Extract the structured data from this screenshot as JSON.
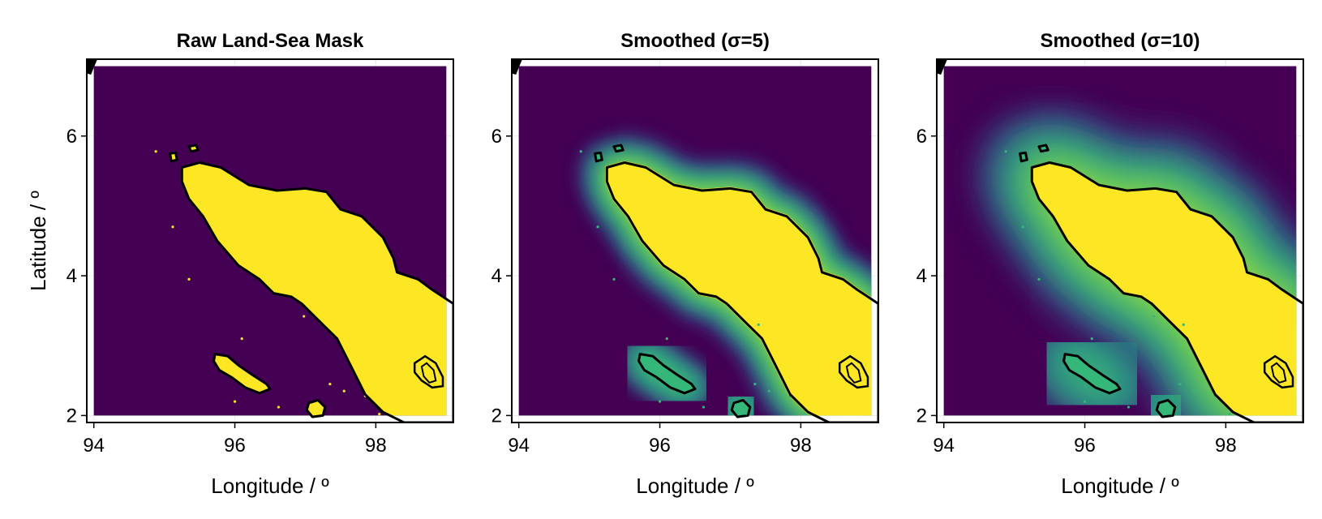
{
  "colors": {
    "sea": "#440154",
    "land": "#fde725",
    "coast": "#000000",
    "levels": [
      "#46337e",
      "#365c8d",
      "#277f8e",
      "#1fa187",
      "#4ac16d",
      "#a0da39",
      "#fde725"
    ],
    "isle_mid": "#35b779",
    "frame": "#000000",
    "grid": "#ebebeb"
  },
  "chart_data": [
    {
      "type": "heatmap",
      "title": "Raw Land-Sea Mask",
      "xlabel": "Longitude / º",
      "ylabel": "Latitude / º",
      "xlim": [
        93.9,
        99.1
      ],
      "ylim": [
        1.9,
        7.1
      ],
      "xticks": [
        94,
        96,
        98
      ],
      "yticks": [
        2,
        4,
        6
      ],
      "field": "binary land-sea mask (0 = sea, 1 = land)",
      "smoothing_sigma": 0
    },
    {
      "type": "heatmap",
      "title": "Smoothed (σ=5)",
      "xlabel": "Longitude / º",
      "ylabel": "",
      "xlim": [
        93.9,
        99.1
      ],
      "ylim": [
        1.9,
        7.1
      ],
      "xticks": [
        94,
        96,
        98
      ],
      "yticks": [
        2,
        4,
        6
      ],
      "field": "gaussian-smoothed land-sea mask",
      "smoothing_sigma": 5
    },
    {
      "type": "heatmap",
      "title": "Smoothed (σ=10)",
      "xlabel": "Longitude / º",
      "ylabel": "",
      "xlim": [
        93.9,
        99.1
      ],
      "ylim": [
        1.9,
        7.1
      ],
      "xticks": [
        94,
        96,
        98
      ],
      "yticks": [
        2,
        4,
        6
      ],
      "field": "gaussian-smoothed land-sea mask",
      "smoothing_sigma": 10
    }
  ],
  "features": {
    "mainland": [
      [
        95.25,
        5.55
      ],
      [
        95.5,
        5.62
      ],
      [
        95.8,
        5.55
      ],
      [
        96.2,
        5.3
      ],
      [
        96.6,
        5.22
      ],
      [
        97.0,
        5.25
      ],
      [
        97.3,
        5.2
      ],
      [
        97.5,
        4.95
      ],
      [
        97.8,
        4.85
      ],
      [
        98.1,
        4.55
      ],
      [
        98.25,
        4.25
      ],
      [
        98.3,
        4.05
      ],
      [
        98.6,
        3.95
      ],
      [
        98.8,
        3.8
      ],
      [
        99.1,
        3.6
      ],
      [
        99.1,
        1.9
      ],
      [
        98.4,
        1.9
      ],
      [
        98.1,
        2.05
      ],
      [
        97.85,
        2.3
      ],
      [
        97.65,
        2.7
      ],
      [
        97.45,
        3.1
      ],
      [
        97.2,
        3.35
      ],
      [
        96.95,
        3.6
      ],
      [
        96.8,
        3.7
      ],
      [
        96.55,
        3.75
      ],
      [
        96.35,
        3.95
      ],
      [
        96.05,
        4.15
      ],
      [
        95.75,
        4.5
      ],
      [
        95.55,
        4.85
      ],
      [
        95.35,
        5.1
      ],
      [
        95.25,
        5.35
      ]
    ],
    "islands": [
      [
        [
          95.72,
          2.88
        ],
        [
          95.9,
          2.85
        ],
        [
          96.05,
          2.72
        ],
        [
          96.25,
          2.58
        ],
        [
          96.45,
          2.45
        ],
        [
          96.5,
          2.38
        ],
        [
          96.35,
          2.32
        ],
        [
          96.15,
          2.4
        ],
        [
          95.95,
          2.55
        ],
        [
          95.78,
          2.65
        ],
        [
          95.7,
          2.78
        ]
      ],
      [
        [
          97.05,
          2.18
        ],
        [
          97.18,
          2.22
        ],
        [
          97.28,
          2.12
        ],
        [
          97.25,
          2.0
        ],
        [
          97.1,
          1.98
        ],
        [
          97.02,
          2.08
        ]
      ],
      [
        [
          95.35,
          5.85
        ],
        [
          95.45,
          5.87
        ],
        [
          95.48,
          5.8
        ],
        [
          95.38,
          5.78
        ]
      ],
      [
        [
          95.08,
          5.75
        ],
        [
          95.16,
          5.76
        ],
        [
          95.18,
          5.66
        ],
        [
          95.1,
          5.64
        ]
      ]
    ],
    "lake": [
      [
        98.55,
        2.75
      ],
      [
        98.7,
        2.85
      ],
      [
        98.85,
        2.75
      ],
      [
        98.95,
        2.55
      ],
      [
        98.95,
        2.42
      ],
      [
        98.8,
        2.4
      ],
      [
        98.65,
        2.5
      ],
      [
        98.55,
        2.62
      ]
    ],
    "lake_inner": [
      [
        98.65,
        2.7
      ],
      [
        98.72,
        2.75
      ],
      [
        98.82,
        2.65
      ],
      [
        98.85,
        2.5
      ],
      [
        98.76,
        2.47
      ],
      [
        98.68,
        2.56
      ]
    ],
    "islets": [
      [
        94.88,
        5.78
      ],
      [
        95.12,
        4.7
      ],
      [
        95.35,
        3.95
      ],
      [
        96.1,
        3.1
      ],
      [
        96.62,
        2.12
      ],
      [
        96.98,
        3.42
      ],
      [
        97.4,
        3.3
      ],
      [
        97.55,
        2.35
      ],
      [
        98.05,
        2.02
      ],
      [
        97.85,
        2.28
      ],
      [
        96.0,
        2.2
      ],
      [
        97.35,
        2.45
      ]
    ],
    "corner": [
      [
        93.88,
        7.1
      ],
      [
        94.05,
        7.1
      ],
      [
        94.0,
        6.98
      ],
      [
        93.96,
        6.88
      ],
      [
        93.88,
        6.9
      ]
    ]
  }
}
